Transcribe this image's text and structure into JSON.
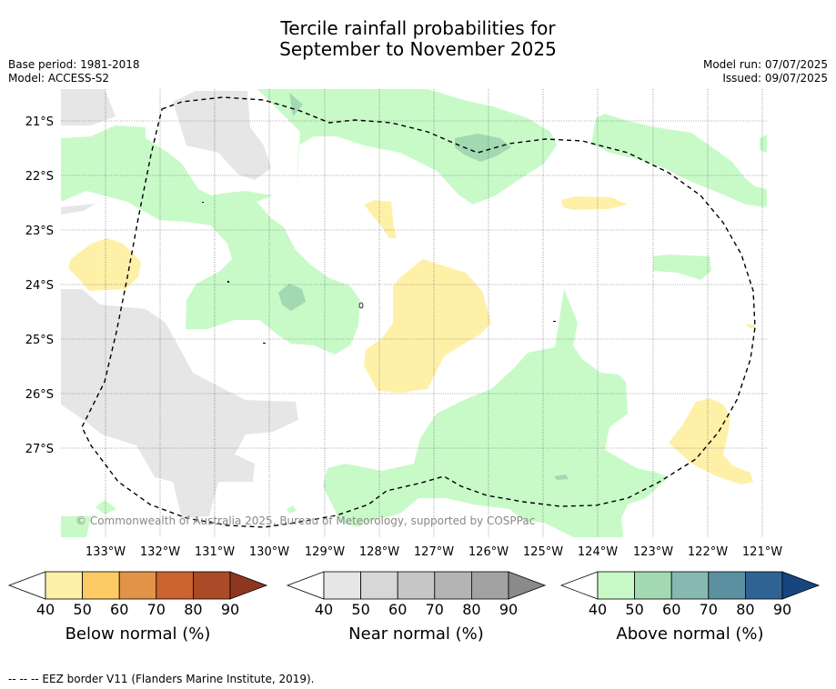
{
  "title_line1": "Tercile rainfall probabilities for",
  "title_line2": "September to November 2025",
  "base_period": "Base period: 1981-2018",
  "model": "Model: ACCESS-S2",
  "model_run": "Model run: 07/07/2025",
  "issued": "Issued: 09/07/2025",
  "copyright": "© Commonwealth of Australia 2025, Bureau of Meteorology, supported by COSPPac",
  "footer_note": "--  --  -- EEZ border V11 (Flanders Marine Institute, 2019).",
  "lat_labels": [
    "21°S",
    "22°S",
    "23°S",
    "24°S",
    "25°S",
    "26°S",
    "27°S"
  ],
  "lon_labels": [
    "133°W",
    "132°W",
    "131°W",
    "130°W",
    "129°W",
    "128°W",
    "127°W",
    "126°W",
    "125°W",
    "124°W",
    "123°W",
    "122°W",
    "121°W"
  ],
  "colorbars": [
    {
      "label": "Below normal (%)",
      "ticks": [
        "40",
        "50",
        "60",
        "70",
        "80",
        "90"
      ],
      "colors": [
        "#fff0a8",
        "#fdcb63",
        "#e19347",
        "#cb6330",
        "#ab4a26"
      ],
      "arrow": "#8f3620"
    },
    {
      "label": "Near normal (%)",
      "ticks": [
        "40",
        "50",
        "60",
        "70",
        "80",
        "90"
      ],
      "colors": [
        "#e6e6e6",
        "#d7d7d7",
        "#c6c6c6",
        "#b4b4b4",
        "#a2a2a2"
      ],
      "arrow": "#8a8a8a"
    },
    {
      "label": "Above normal (%)",
      "ticks": [
        "40",
        "50",
        "60",
        "70",
        "80",
        "90"
      ],
      "colors": [
        "#c8fac8",
        "#a2d8b2",
        "#86b9b1",
        "#5a909f",
        "#2f6393"
      ],
      "arrow": "#16457f"
    }
  ],
  "map_colors": {
    "below": "#fff0a8",
    "near": "#e6e6e6",
    "above": "#c8fac8",
    "above60": "#a2d8b2"
  }
}
